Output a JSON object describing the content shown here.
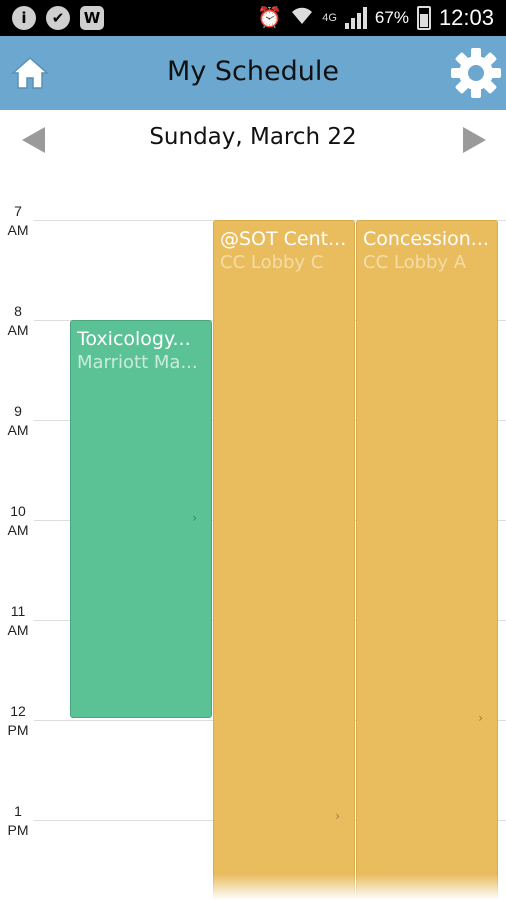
{
  "status_bar": {
    "left_icons": [
      "i",
      "✔",
      "W"
    ],
    "network": "4G",
    "battery": "67%",
    "time": "12:03"
  },
  "app_bar": {
    "title": "My Schedule",
    "home_icon": "home-icon",
    "settings_icon": "gear-icon"
  },
  "date_nav": {
    "date": "Sunday, March 22"
  },
  "hours": [
    {
      "num": "7",
      "ampm": "AM"
    },
    {
      "num": "8",
      "ampm": "AM"
    },
    {
      "num": "9",
      "ampm": "AM"
    },
    {
      "num": "10",
      "ampm": "AM"
    },
    {
      "num": "11",
      "ampm": "AM"
    },
    {
      "num": "12",
      "ampm": "PM"
    },
    {
      "num": "1",
      "ampm": "PM"
    }
  ],
  "events": [
    {
      "title": "Toxicology...",
      "location": "Marriott Ma...",
      "color": "#5bc296"
    },
    {
      "title": "@SOT Cent...",
      "location": "CC Lobby C",
      "color": "#e9bd5e"
    },
    {
      "title": "Concession...",
      "location": "CC Lobby A",
      "color": "#e9bd5e"
    }
  ]
}
